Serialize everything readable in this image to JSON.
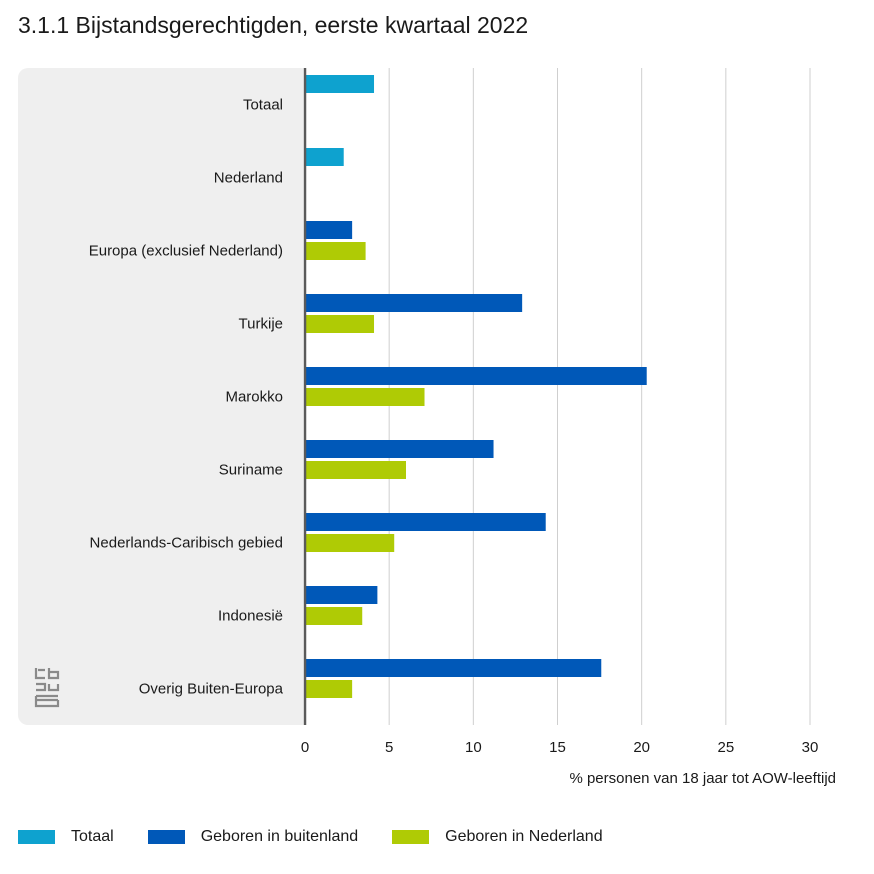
{
  "title": "3.1.1 Bijstandsgerechtigden, eerste kwartaal 2022",
  "colors": {
    "totaal": "#0ea2cf",
    "buitenland": "#0058b8",
    "nederland": "#afcb05",
    "panel": "#efefef",
    "grid": "#cfcfcf",
    "axis": "#5a5a5a"
  },
  "legend": [
    {
      "label": "Totaal",
      "color": "#0ea2cf"
    },
    {
      "label": "Geboren in buitenland",
      "color": "#0058b8"
    },
    {
      "label": "Geboren in Nederland",
      "color": "#afcb05"
    }
  ],
  "chart_data": {
    "type": "bar",
    "orientation": "horizontal",
    "title": "3.1.1 Bijstandsgerechtigden, eerste kwartaal 2022",
    "xlabel": "% personen van 18 jaar tot AOW-leeftijd",
    "ylabel": "",
    "xlim": [
      0,
      30
    ],
    "xticks": [
      0,
      5,
      10,
      15,
      20,
      25,
      30
    ],
    "grid": true,
    "legend_position": "bottom",
    "categories": [
      "Totaal",
      "Nederland",
      "Europa (exclusief Nederland)",
      "Turkije",
      "Marokko",
      "Suriname",
      "Nederlands-Caribisch gebied",
      "Indonesië",
      "Overig Buiten-Europa"
    ],
    "series": [
      {
        "name": "Totaal",
        "color": "#0ea2cf",
        "values": [
          4.1,
          2.3,
          null,
          null,
          null,
          null,
          null,
          null,
          null
        ]
      },
      {
        "name": "Geboren in buitenland",
        "color": "#0058b8",
        "values": [
          null,
          null,
          2.8,
          12.9,
          20.3,
          11.2,
          14.3,
          4.3,
          17.6
        ]
      },
      {
        "name": "Geboren in Nederland",
        "color": "#afcb05",
        "values": [
          null,
          null,
          3.6,
          4.1,
          7.1,
          6.0,
          5.3,
          3.4,
          2.8
        ]
      }
    ]
  }
}
